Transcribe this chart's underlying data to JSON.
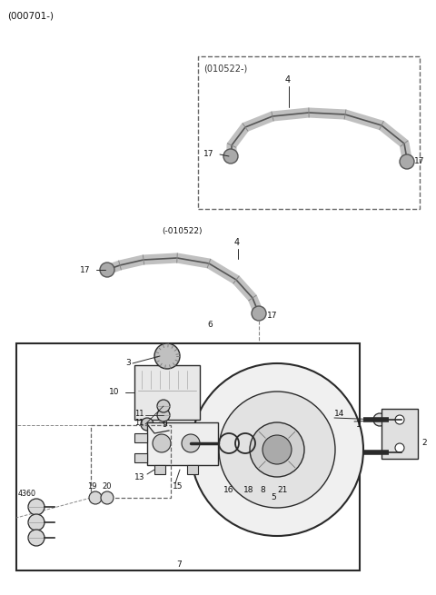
{
  "bg_color": "#ffffff",
  "lc": "#2a2a2a",
  "dc": "#666666",
  "fig_w": 4.8,
  "fig_h": 6.55,
  "dpi": 100,
  "top_label": "(000701-)",
  "box1_label": "(010522-)",
  "box2_label": "(-010522)"
}
